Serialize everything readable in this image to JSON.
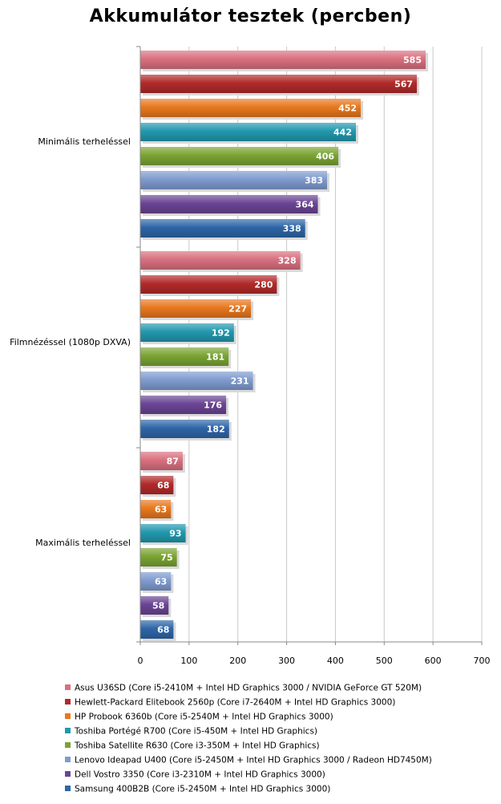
{
  "chart_data": {
    "type": "bar",
    "orientation": "horizontal",
    "title": "Akkumulátor tesztek (percben)",
    "categories": [
      "Minimális terheléssel",
      "Filmnézéssel (1080p DXVA)",
      "Maximális terheléssel"
    ],
    "xlim": [
      0,
      700
    ],
    "xticks": [
      0,
      100,
      200,
      300,
      400,
      500,
      600,
      700
    ],
    "grid": true,
    "legend_position": "bottom",
    "series": [
      {
        "name": "Asus U36SD (Core i5-2410M + Intel HD Graphics 3000 / NVIDIA GeForce GT 520M)",
        "color": "#D9707F",
        "values": [
          585,
          328,
          87
        ]
      },
      {
        "name": "Hewlett-Packard Elitebook 2560p (Core i7-2640M + Intel HD Graphics 3000)",
        "color": "#B22A2A",
        "values": [
          567,
          280,
          68
        ]
      },
      {
        "name": "HP Probook 6360b (Core i5-2540M + Intel HD Graphics 3000)",
        "color": "#E8781E",
        "values": [
          452,
          227,
          63
        ]
      },
      {
        "name": "Toshiba Portégé R700 (Core i5-450M + Intel HD Graphics)",
        "color": "#2298AE",
        "values": [
          442,
          192,
          93
        ]
      },
      {
        "name": "Toshiba Satellite R630 (Core i3-350M + Intel HD Graphics)",
        "color": "#7AA433",
        "values": [
          406,
          181,
          75
        ]
      },
      {
        "name": "Lenovo Ideapad U400 (Core i5-2450M + Intel HD Graphics 3000 / Radeon HD7450M)",
        "color": "#7F9BCF",
        "values": [
          383,
          231,
          63
        ]
      },
      {
        "name": "Dell Vostro 3350 (Core i3-2310M + Intel HD Graphics 3000)",
        "color": "#6B4595",
        "values": [
          364,
          176,
          58
        ]
      },
      {
        "name": "Samsung 400B2B (Core i5-2450M + Intel HD Graphics 3000)",
        "color": "#2E66A8",
        "values": [
          338,
          182,
          68
        ]
      }
    ]
  }
}
